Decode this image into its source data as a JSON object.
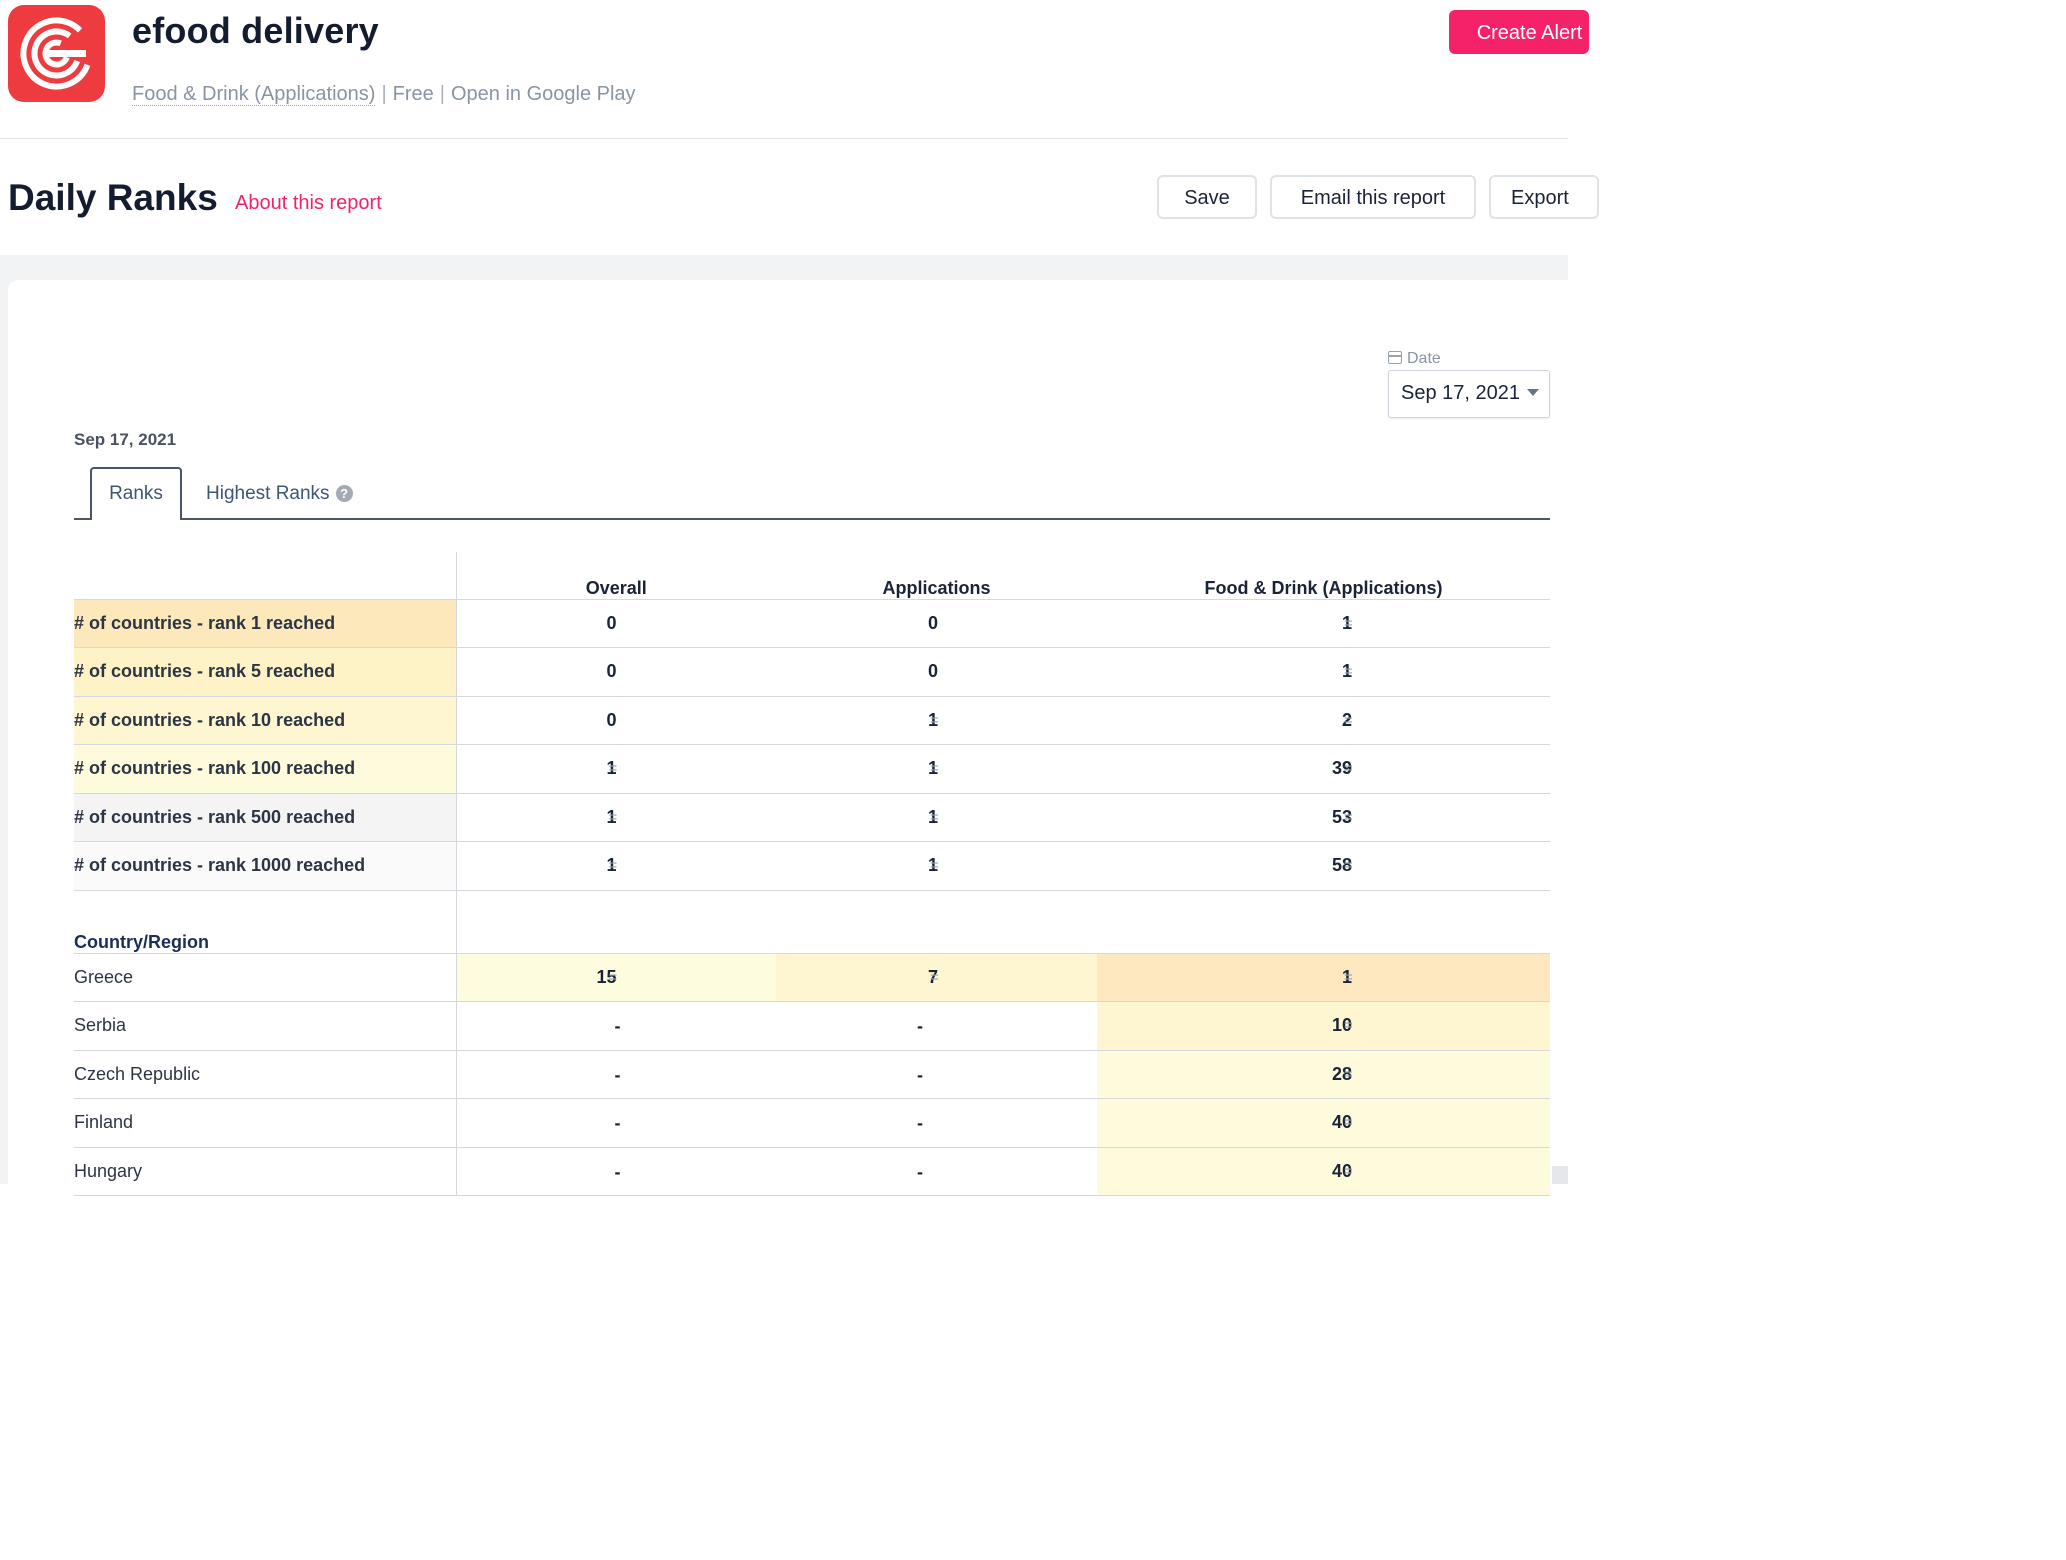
{
  "header": {
    "app_name": "efood delivery",
    "category": "Food & Drink (Applications)",
    "price": "Free",
    "store_link": "Open in Google Play",
    "create_alert_label": "Create Alert"
  },
  "report": {
    "title": "Daily Ranks",
    "about_label": "About this report",
    "save_label": "Save",
    "email_label": "Email this report",
    "export_label": "Export"
  },
  "date_picker": {
    "label": "Date",
    "value": "Sep 17, 2021"
  },
  "report_date": "Sep 17, 2021",
  "tabs": [
    {
      "label": "Ranks",
      "active": true
    },
    {
      "label": "Highest Ranks",
      "active": false
    }
  ],
  "table": {
    "columns": [
      "Overall",
      "Applications",
      "Food & Drink (Applications)"
    ],
    "summary_rows": [
      {
        "label": "# of countries - rank 1 reached",
        "values": [
          "0",
          "0",
          "1"
        ],
        "change": [
          "",
          "",
          "="
        ],
        "shade": "#fde8bb"
      },
      {
        "label": "# of countries - rank 5 reached",
        "values": [
          "0",
          "0",
          "1"
        ],
        "change": [
          "",
          "",
          "="
        ],
        "shade": "#fdf3c6"
      },
      {
        "label": "# of countries - rank 10 reached",
        "values": [
          "0",
          "1",
          "2"
        ],
        "change": [
          "",
          "=",
          "="
        ],
        "shade": "#fdf6d0"
      },
      {
        "label": "# of countries - rank 100 reached",
        "values": [
          "1",
          "1",
          "39"
        ],
        "change": [
          "=",
          "=",
          "="
        ],
        "shade": "#fefbdc"
      },
      {
        "label": "# of countries - rank 500 reached",
        "values": [
          "1",
          "1",
          "53"
        ],
        "change": [
          "=",
          "=",
          "="
        ],
        "shade": "#f4f4f5"
      },
      {
        "label": "# of countries - rank 1000 reached",
        "values": [
          "1",
          "1",
          "58"
        ],
        "change": [
          "=",
          "=",
          "="
        ],
        "shade": "#fafafa"
      }
    ],
    "section_label": "Country/Region",
    "country_rows": [
      {
        "name": "Greece",
        "values": [
          "15",
          "7",
          "1"
        ],
        "change": [
          "=",
          "=",
          "="
        ],
        "shades": [
          "#fefcdf",
          "#fdf6d1",
          "#fde8bf"
        ]
      },
      {
        "name": "Serbia",
        "values": [
          "-",
          "-",
          "10"
        ],
        "change": [
          "",
          "",
          "="
        ],
        "shades": [
          "#ffffff",
          "#ffffff",
          "#fdf6d1"
        ]
      },
      {
        "name": "Czech Republic",
        "values": [
          "-",
          "-",
          "28"
        ],
        "change": [
          "",
          "",
          "="
        ],
        "shades": [
          "#ffffff",
          "#ffffff",
          "#fefbdc"
        ]
      },
      {
        "name": "Finland",
        "values": [
          "-",
          "-",
          "40"
        ],
        "change": [
          "",
          "",
          "="
        ],
        "shades": [
          "#ffffff",
          "#ffffff",
          "#fefbdc"
        ]
      },
      {
        "name": "Hungary",
        "values": [
          "-",
          "-",
          "40"
        ],
        "change": [
          "",
          "",
          "="
        ],
        "shades": [
          "#ffffff",
          "#ffffff",
          "#fefbdc"
        ]
      }
    ]
  },
  "colors": {
    "accent": "#f5226a",
    "app_icon": "#ee3b3f"
  }
}
